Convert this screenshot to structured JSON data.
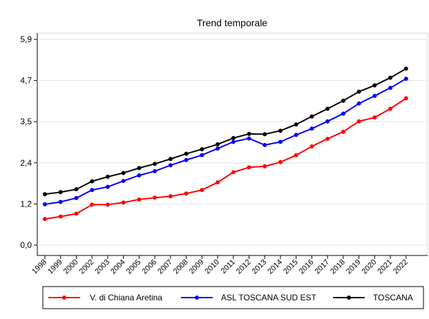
{
  "chart_data": {
    "type": "line",
    "title": "Trend temporale",
    "xlabel": "",
    "ylabel": "",
    "ylim": [
      0,
      5.9
    ],
    "y_ticks": [
      "0,0",
      "1,2",
      "2,4",
      "3,5",
      "4,7",
      "5,9"
    ],
    "y_tick_values": [
      0.0,
      1.18,
      2.36,
      3.54,
      4.72,
      5.9
    ],
    "grid": "horizontal",
    "legend_position": "bottom",
    "categories": [
      "1998",
      "1999",
      "2000",
      "2002",
      "2003",
      "2004",
      "2005",
      "2006",
      "2007",
      "2008",
      "2009",
      "2010",
      "2011",
      "2012",
      "2013",
      "2014",
      "2015",
      "2016",
      "2017",
      "2018",
      "2019",
      "2020",
      "2021",
      "2022"
    ],
    "series": [
      {
        "name": "V. di Chiana Aretina",
        "color": "#ff0000",
        "values": [
          0.75,
          0.82,
          0.9,
          1.16,
          1.16,
          1.22,
          1.31,
          1.36,
          1.4,
          1.48,
          1.58,
          1.8,
          2.09,
          2.23,
          2.26,
          2.38,
          2.58,
          2.83,
          3.05,
          3.25,
          3.55,
          3.66,
          3.91,
          4.21
        ],
        "marker_color": "#ff0000"
      },
      {
        "name": "ASL TOSCANA SUD EST",
        "color": "#0000ff",
        "values": [
          1.17,
          1.24,
          1.35,
          1.58,
          1.67,
          1.84,
          2.0,
          2.12,
          2.29,
          2.44,
          2.58,
          2.77,
          2.96,
          3.06,
          2.87,
          2.96,
          3.16,
          3.34,
          3.55,
          3.77,
          4.06,
          4.28,
          4.51,
          4.77
        ],
        "marker_color": "#0000ff"
      },
      {
        "name": "TOSCANA",
        "color": "#000000",
        "values": [
          1.46,
          1.52,
          1.6,
          1.83,
          1.96,
          2.07,
          2.21,
          2.33,
          2.47,
          2.62,
          2.75,
          2.89,
          3.07,
          3.19,
          3.18,
          3.28,
          3.46,
          3.69,
          3.91,
          4.14,
          4.4,
          4.58,
          4.8,
          5.06
        ],
        "marker_color": "#000000"
      }
    ]
  }
}
